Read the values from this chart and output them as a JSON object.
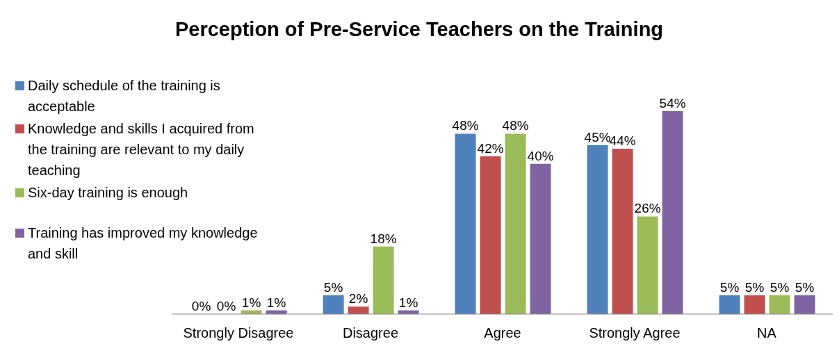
{
  "chart_data": {
    "type": "bar",
    "title": "Perception of Pre-Service Teachers on the Training",
    "categories": [
      "Strongly Disagree",
      "Disagree",
      "Agree",
      "Strongly Agree",
      "NA"
    ],
    "series": [
      {
        "name": "Daily schedule of the training is acceptable",
        "color": "#4f81bd",
        "values": [
          0,
          5,
          48,
          45,
          5
        ],
        "value_labels": [
          "0%",
          "5%",
          "48%",
          "45%",
          "5%"
        ]
      },
      {
        "name": "Knowledge and skills I acquired from the training are relevant to my daily teaching",
        "color": "#c0504d",
        "values": [
          0,
          2,
          42,
          44,
          5
        ],
        "value_labels": [
          "0%",
          "2%",
          "42%",
          "44%",
          "5%"
        ]
      },
      {
        "name": "Six-day training is enough",
        "color": "#9bbb59",
        "values": [
          1,
          18,
          48,
          26,
          5
        ],
        "value_labels": [
          "1%",
          "18%",
          "48%",
          "26%",
          "5%"
        ]
      },
      {
        "name": "Training has improved my knowledge and skill",
        "color": "#8064a2",
        "values": [
          1,
          1,
          40,
          54,
          5
        ],
        "value_labels": [
          "1%",
          "1%",
          "40%",
          "54%",
          "5%"
        ]
      }
    ],
    "legend": "top left",
    "grid": false
  }
}
